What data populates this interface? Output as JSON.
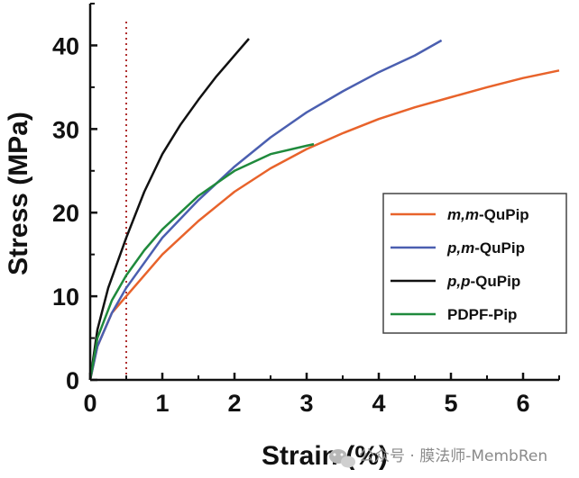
{
  "chart_data": {
    "type": "line",
    "xlabel": "Strain (%)",
    "ylabel": "Stress (MPa)",
    "xlim": [
      0,
      6.5
    ],
    "ylim": [
      0,
      45
    ],
    "x_ticks": [
      0,
      1,
      2,
      3,
      4,
      5,
      6
    ],
    "y_ticks": [
      0,
      10,
      20,
      30,
      40
    ],
    "grid": false,
    "legend_position": "right",
    "reference_line": {
      "axis": "x",
      "value": 0.5,
      "style": "dotted",
      "color": "#b03030"
    },
    "series": [
      {
        "name_prefix": "m,m",
        "name_suffix": "-QuPip",
        "color": "#e8632b",
        "x": [
          0,
          0.1,
          0.3,
          0.5,
          1,
          1.5,
          2,
          2.5,
          3,
          3.5,
          4,
          4.5,
          5,
          5.5,
          6,
          6.5
        ],
        "y": [
          0,
          4,
          8,
          10,
          15,
          19,
          22.5,
          25.3,
          27.6,
          29.5,
          31.2,
          32.6,
          33.8,
          35,
          36.1,
          37
        ]
      },
      {
        "name_prefix": "p,m",
        "name_suffix": "-QuPip",
        "color": "#4b5fb0",
        "x": [
          0,
          0.1,
          0.3,
          0.5,
          1,
          1.5,
          2,
          2.5,
          3,
          3.5,
          4,
          4.5,
          4.87
        ],
        "y": [
          0,
          4,
          8,
          11,
          17,
          21.5,
          25.5,
          29,
          32,
          34.5,
          36.8,
          38.8,
          40.6
        ]
      },
      {
        "name_prefix": "p,p",
        "name_suffix": "-QuPip",
        "color": "#111111",
        "x": [
          0,
          0.1,
          0.25,
          0.5,
          0.75,
          1,
          1.25,
          1.5,
          1.75,
          2,
          2.2
        ],
        "y": [
          0,
          6,
          11,
          17,
          22.5,
          27,
          30.5,
          33.5,
          36.3,
          38.8,
          40.8
        ]
      },
      {
        "name": "PDPF-Pip",
        "color": "#1f8a3c",
        "x": [
          0,
          0.1,
          0.3,
          0.5,
          0.75,
          1,
          1.5,
          2,
          2.5,
          3,
          3.1
        ],
        "y": [
          0,
          5,
          9.5,
          12.5,
          15.5,
          18,
          22,
          25,
          27,
          28,
          28.2
        ]
      }
    ]
  },
  "watermark": {
    "text": "公众号 · 膜法师-MembRen",
    "icon": "wechat-icon"
  }
}
